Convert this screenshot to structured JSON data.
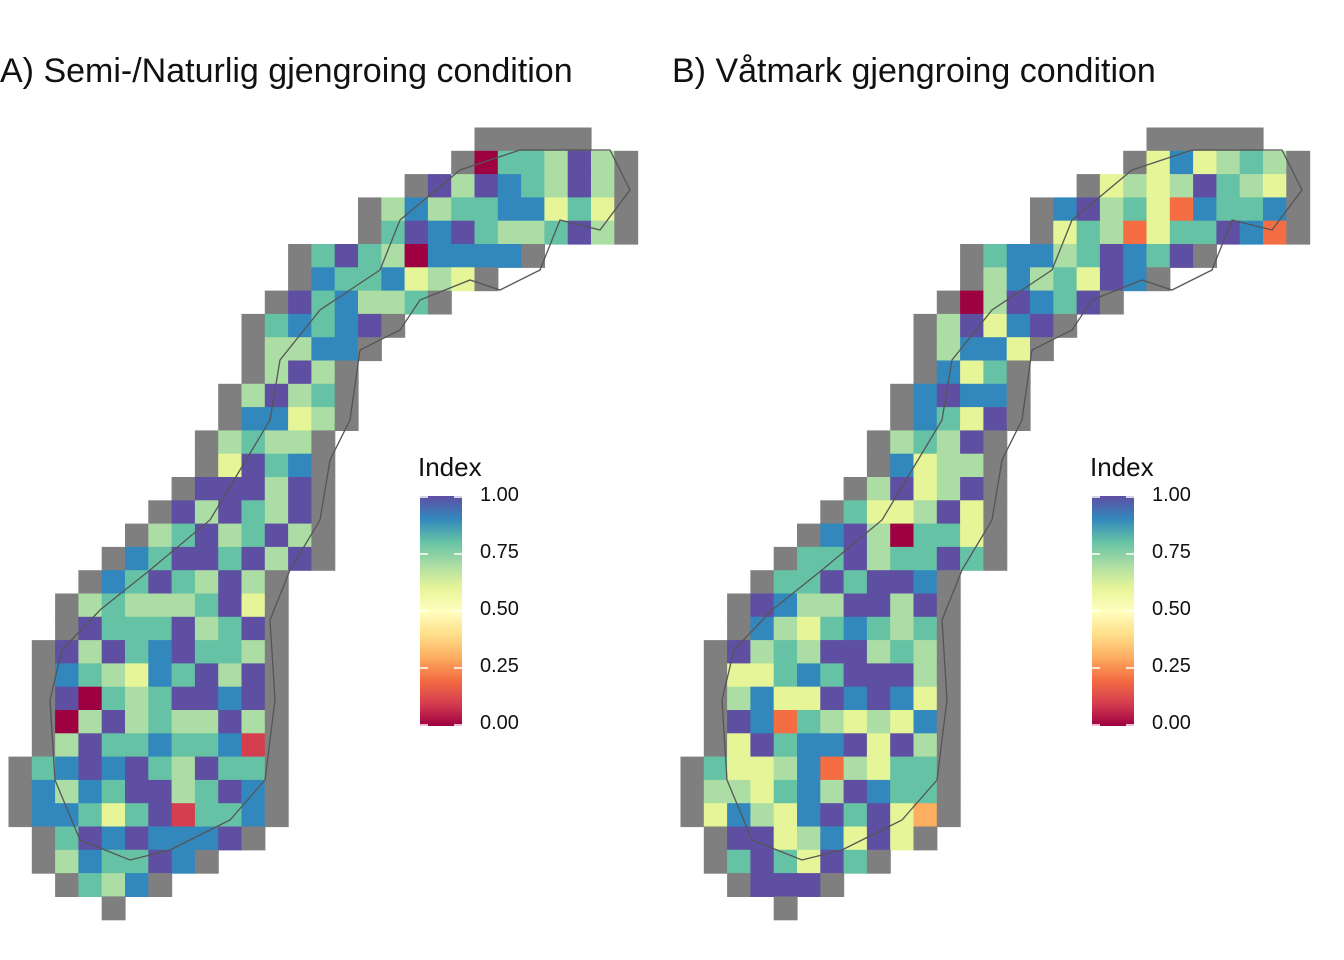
{
  "panels": [
    {
      "title": "A) Semi-/Naturlig gjengroing condition"
    },
    {
      "title": "B) Våtmark gjengroing condition"
    }
  ],
  "legend": {
    "title": "Index",
    "ticks": [
      "1.00",
      "0.75",
      "0.50",
      "0.25",
      "0.00"
    ]
  },
  "colors": {
    "nodata": "#7f7f7f",
    "scale": [
      "#9e0142",
      "#d53e4f",
      "#f46d43",
      "#fdae61",
      "#fee08b",
      "#ffffbf",
      "#e6f598",
      "#abdda4",
      "#66c2a5",
      "#3288bd",
      "#5e4fa2"
    ],
    "outline": "#555555"
  }
}
